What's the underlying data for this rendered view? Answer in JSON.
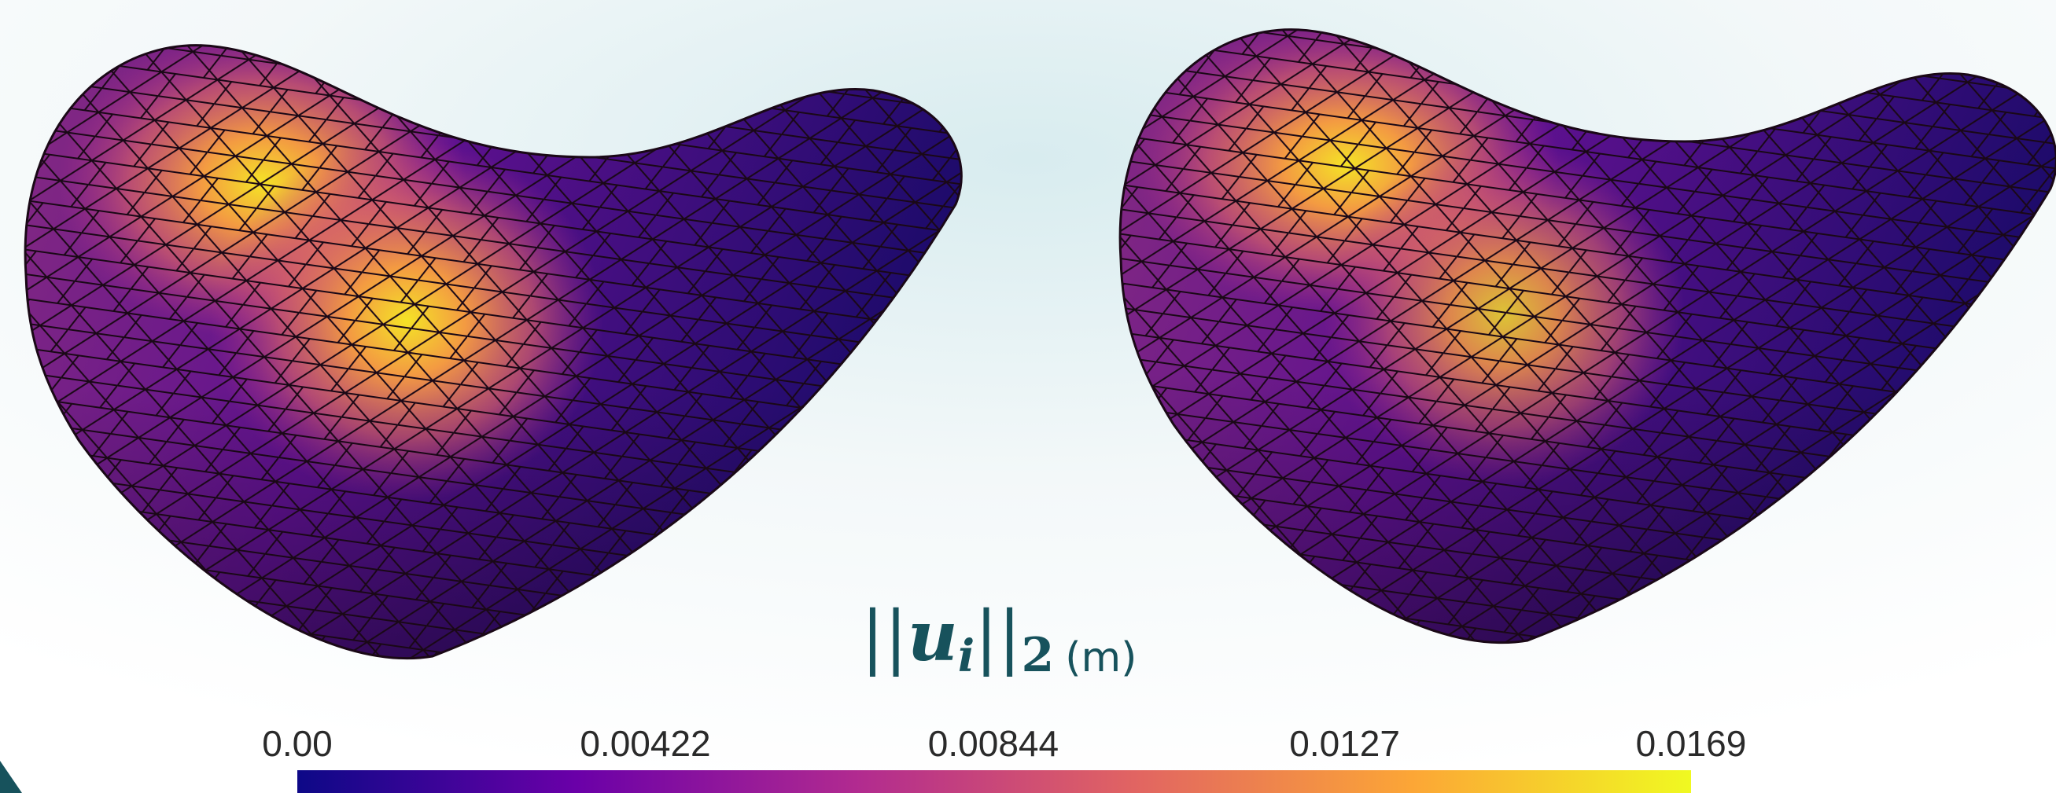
{
  "colorbar": {
    "title": {
      "bars": "||",
      "variable": "u",
      "index": "i",
      "norm_order": "2",
      "unit": "(m)"
    },
    "lim": [
      0,
      0.0169
    ],
    "ticks": [
      {
        "value": 0,
        "label": "0.00"
      },
      0.00422,
      0.00844,
      0.0127,
      0.0169
    ],
    "colors": [
      "#0d0887",
      "#6a00a8",
      "#b12a90",
      "#e16462",
      "#fca636",
      "#f0f921"
    ]
  }
}
